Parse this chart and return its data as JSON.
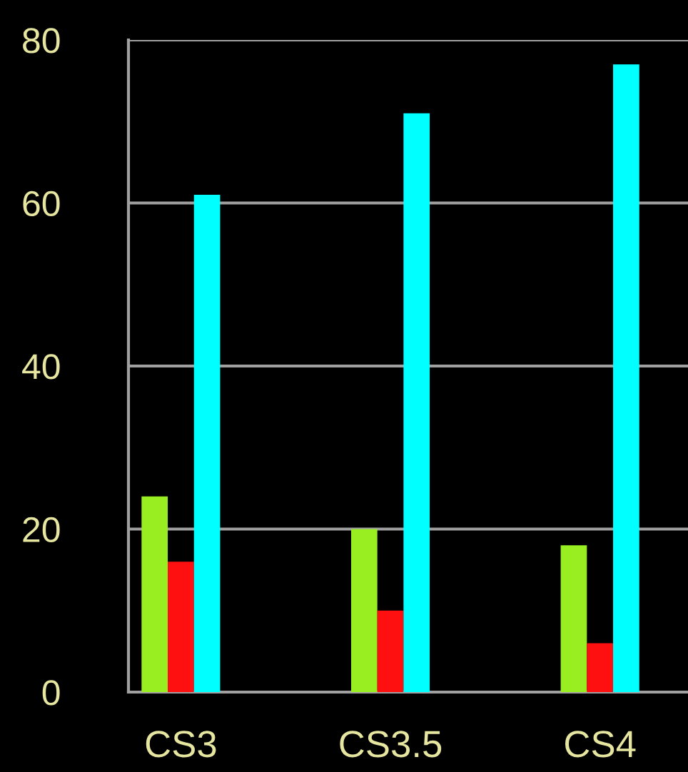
{
  "chart_data": {
    "type": "bar",
    "categories": [
      "CS3",
      "CS3.5",
      "CS4"
    ],
    "series": [
      {
        "color": "#99ee22",
        "values": [
          24,
          20,
          18
        ]
      },
      {
        "color": "#ff1010",
        "values": [
          16,
          10,
          6
        ]
      },
      {
        "color": "#00ffff",
        "values": [
          61,
          71,
          77
        ]
      }
    ],
    "ylim": [
      0,
      80
    ],
    "yticks": [
      0,
      20,
      40,
      60,
      80
    ],
    "grid": "y"
  }
}
